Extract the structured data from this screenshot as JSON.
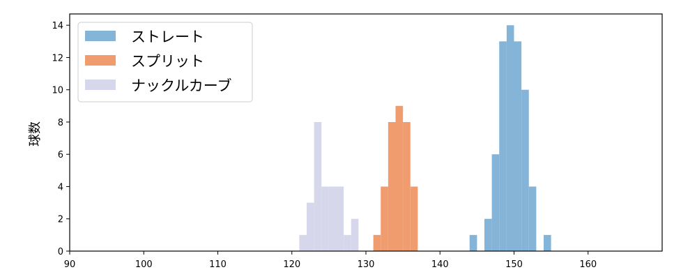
{
  "chart_data": {
    "type": "bar",
    "title": "",
    "xlabel": "",
    "ylabel": "球数",
    "xlim": [
      90,
      170
    ],
    "ylim": [
      0,
      14.7
    ],
    "xticks": [
      90,
      100,
      110,
      120,
      130,
      140,
      150,
      160
    ],
    "yticks": [
      0,
      2,
      4,
      6,
      8,
      10,
      12,
      14
    ],
    "grid": false,
    "legend_position": "top-left",
    "bin_width": 1,
    "series": [
      {
        "name": "ストレート",
        "color": "#84b4d8",
        "bins": [
          {
            "x": 144,
            "count": 1
          },
          {
            "x": 146,
            "count": 2
          },
          {
            "x": 147,
            "count": 6
          },
          {
            "x": 148,
            "count": 13
          },
          {
            "x": 149,
            "count": 14
          },
          {
            "x": 150,
            "count": 13
          },
          {
            "x": 151,
            "count": 10
          },
          {
            "x": 152,
            "count": 4
          },
          {
            "x": 154,
            "count": 1
          }
        ]
      },
      {
        "name": "スプリット",
        "color": "#f09c6e",
        "bins": [
          {
            "x": 131,
            "count": 1
          },
          {
            "x": 132,
            "count": 4
          },
          {
            "x": 133,
            "count": 8
          },
          {
            "x": 134,
            "count": 9
          },
          {
            "x": 135,
            "count": 8
          },
          {
            "x": 136,
            "count": 4
          }
        ]
      },
      {
        "name": "ナックルカーブ",
        "color": "#d6d7ea",
        "bins": [
          {
            "x": 121,
            "count": 1
          },
          {
            "x": 122,
            "count": 3
          },
          {
            "x": 123,
            "count": 8
          },
          {
            "x": 124,
            "count": 4
          },
          {
            "x": 125,
            "count": 4
          },
          {
            "x": 126,
            "count": 4
          },
          {
            "x": 127,
            "count": 1
          },
          {
            "x": 128,
            "count": 2
          }
        ]
      }
    ]
  }
}
